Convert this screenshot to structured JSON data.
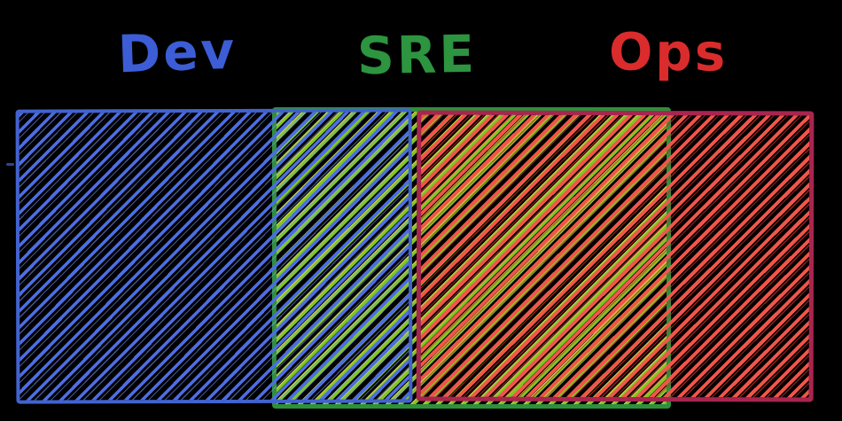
{
  "diagram": {
    "labels": {
      "dev": {
        "text": "Dev",
        "color": "#3c5dd6"
      },
      "sre": {
        "text": "SRE",
        "color": "#2d9440"
      },
      "ops": {
        "text": "Ops",
        "color": "#da2c2c"
      }
    },
    "bands": [
      {
        "name": "Dev",
        "hatch_style": "diagonal",
        "hatch_color": "#4d6de2",
        "border_color": "#4263cf"
      },
      {
        "name": "SRE",
        "hatch_style": "diagonal",
        "hatch_color": "#7ec525",
        "border_color": "#2f8f3c"
      },
      {
        "name": "Ops",
        "hatch_style": "diagonal",
        "hatch_color": "#f15549",
        "border_color": "#a82550"
      }
    ],
    "overlaps": [
      {
        "between": [
          "Dev",
          "SRE"
        ]
      },
      {
        "between": [
          "SRE",
          "Ops"
        ]
      }
    ]
  },
  "colors": {
    "background": "#000000",
    "label_dev": "#3c5dd6",
    "label_sre": "#2d9440",
    "label_ops": "#da2c2c",
    "dev_stroke": "#4263cf",
    "dev_hatch": "#4d6de2",
    "sre_stroke": "#2f8f3c",
    "sre_hatch": "#7ec525",
    "ops_stroke": "#a82550",
    "ops_hatch": "#f15549"
  }
}
